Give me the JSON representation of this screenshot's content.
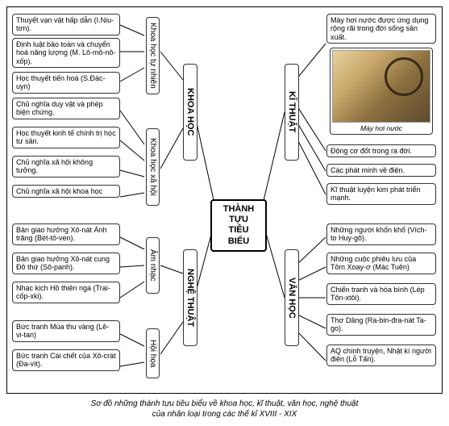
{
  "center": "THÀNH TỰU\nTIÊU BIỂU",
  "caption": "Sơ đồ những thành tựu tiêu biểu về khoa học, kĩ thuật, văn học, nghệ thuật\ncủa nhân loại trong các thế kỉ XVIII - XIX",
  "branches": {
    "khoahoc": {
      "label": "KHOA HỌC"
    },
    "nghethuat": {
      "label": "NGHỆ THUẬT"
    },
    "kithuat": {
      "label": "KĨ THUẬT"
    },
    "vanhoc": {
      "label": "VĂN HỌC"
    }
  },
  "subs": {
    "tunhien": "Khoa học tự nhiên",
    "xahoi": "Khoa học xã hội",
    "amnhac": "Âm nhạc",
    "hoihoa": "Hội họa"
  },
  "left": {
    "l1": "Thuyết vạn vật hấp dẫn (I.Niu-tơn).",
    "l2": "Định luật bảo toàn và chuyển hoá năng lượng (M. Lô-mô-nô-xốp).",
    "l3": "Học thuyết tiến hoá (S.Đác-uyn)",
    "l4": "Chủ nghĩa duy vật và phép biện chứng.",
    "l5": "Học thuyết kinh tế chính trị học tư sản.",
    "l6": "Chủ nghĩa xã hội không tưởng.",
    "l7": "Chủ nghĩa xã hội khoa học",
    "l8": "Bản giao hưởng Xô-nát Ánh trăng (Bét-tô-ven).",
    "l9": "Bản giao hưởng Xô-nát cung Đô thứ (Sô-panh).",
    "l10": "Nhạc kịch Hồ thiên nga (Trai-cốp-xki).",
    "l11": "Bức tranh Mùa thu vàng (Lê-vi-tan)",
    "l12": "Bức tranh Cái chết của Xô-crát (Đa-vít)."
  },
  "right": {
    "r1": "Máy hơi nước được ứng dụng rộng rãi trong đời sống sản xuất.",
    "r1_caption": "Máy hơi nước",
    "r2": "Động cơ đốt trong ra đời.",
    "r3": "Các phát minh về điện.",
    "r4": "Kĩ thuật luyện kim phát triển mạnh.",
    "r5": "Những người khốn khổ (Vích-to Huy-gô).",
    "r6": "Những cuộc phiêu lưu của Tôm Xoay-ơ (Mác Tuên)",
    "r7": "Chiến tranh và hòa bình (Lép Tôn-xtôi).",
    "r8": "Thơ Dâng (Ra-bin-đra-nát Ta-go).",
    "r9": "AQ chính truyện, Nhật kí người điên (Lỗ Tấn)."
  },
  "colors": {
    "line": "#000000",
    "border": "#333333",
    "bg": "#ffffff"
  }
}
